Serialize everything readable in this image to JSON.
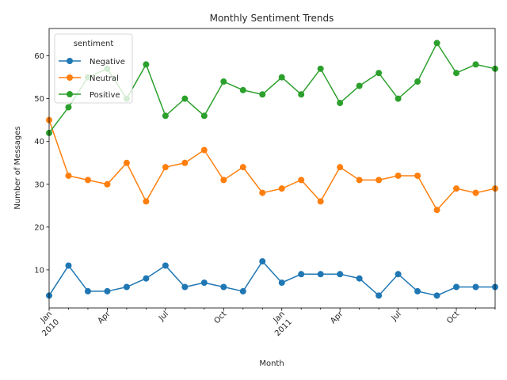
{
  "chart_data": {
    "type": "line",
    "title": "Monthly Sentiment Trends",
    "xlabel": "Month",
    "ylabel": "Number of Messages",
    "x": [
      "2010-01",
      "2010-02",
      "2010-03",
      "2010-04",
      "2010-05",
      "2010-06",
      "2010-07",
      "2010-08",
      "2010-09",
      "2010-10",
      "2010-11",
      "2010-12",
      "2011-01",
      "2011-02",
      "2011-03",
      "2011-04",
      "2011-05",
      "2011-06",
      "2011-07",
      "2011-08",
      "2011-09",
      "2011-10",
      "2011-11",
      "2011-12"
    ],
    "ylim": [
      1.1,
      66.4
    ],
    "yticks": [
      10,
      20,
      30,
      40,
      50,
      60
    ],
    "xticks": [
      {
        "x": "2010-01",
        "label": "Jan",
        "year": "2010"
      },
      {
        "x": "2010-04",
        "label": "Apr",
        "year": ""
      },
      {
        "x": "2010-07",
        "label": "Jul",
        "year": ""
      },
      {
        "x": "2010-10",
        "label": "Oct",
        "year": ""
      },
      {
        "x": "2011-01",
        "label": "Jan",
        "year": "2011"
      },
      {
        "x": "2011-04",
        "label": "Apr",
        "year": ""
      },
      {
        "x": "2011-07",
        "label": "Jul",
        "year": ""
      },
      {
        "x": "2011-10",
        "label": "Oct",
        "year": ""
      }
    ],
    "grid": false,
    "legend": {
      "title": "sentiment",
      "placement": "top-left"
    },
    "series": [
      {
        "name": "Negative",
        "color": "#1f77b4",
        "values": [
          4,
          11,
          5,
          5,
          6,
          8,
          11,
          6,
          7,
          6,
          5,
          12,
          7,
          9,
          9,
          9,
          8,
          4,
          9,
          5,
          4,
          6,
          6,
          6
        ]
      },
      {
        "name": "Neutral",
        "color": "#ff7f0e",
        "values": [
          45,
          32,
          31,
          30,
          35,
          26,
          34,
          35,
          38,
          31,
          34,
          28,
          29,
          31,
          26,
          34,
          31,
          31,
          32,
          32,
          24,
          29,
          28,
          29
        ]
      },
      {
        "name": "Positive",
        "color": "#2ca02c",
        "values": [
          42,
          48,
          55,
          57,
          50,
          58,
          46,
          50,
          46,
          54,
          52,
          51,
          55,
          51,
          57,
          49,
          53,
          56,
          50,
          54,
          63,
          56,
          58,
          57
        ]
      }
    ]
  }
}
